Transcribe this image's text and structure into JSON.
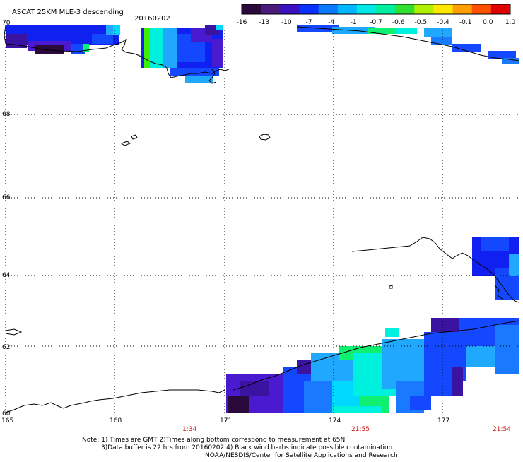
{
  "header": {
    "title": "ASCAT 25KM MLE-3 descending",
    "date": "20160202"
  },
  "colorbar": {
    "labels": [
      "-16",
      "-13",
      "-10",
      "-7",
      "-4",
      "-1",
      "-0.7",
      "-0.6",
      "-0.5",
      "-0.4",
      "-0.1",
      "0.0",
      "1.0"
    ],
    "colors": [
      "#2a0a3a",
      "#4a1a7a",
      "#3a10c0",
      "#0a30ff",
      "#0a78ff",
      "#00b8ff",
      "#00e8e8",
      "#00f0a0",
      "#30e030",
      "#b0f000",
      "#ffe800",
      "#ffa000",
      "#ff5000",
      "#e00000"
    ]
  },
  "map": {
    "lat_labels": [
      "70",
      "68",
      "66",
      "64",
      "62",
      "60"
    ],
    "lon_labels": [
      "165",
      "168",
      "171",
      "174",
      "177"
    ],
    "time_labels": [
      "1:34",
      "21:55",
      "21:54"
    ],
    "time_color": "#d01010",
    "swath_colors": {
      "deep": "#2a0a3a",
      "purple": "#3a14a0",
      "violet": "#4a1ad0",
      "blue": "#1020f0",
      "blue2": "#1448ff",
      "blue3": "#1a7aff",
      "sky": "#20a8ff",
      "cyan": "#00d8ff",
      "aqua": "#00f0e0",
      "green": "#10f070",
      "lime": "#40f000"
    }
  },
  "notes": {
    "line1": "Note: 1) Times are GMT 2)Times along bottom correspond to measurement at 65N",
    "line2": "3)Data buffer is 22 hrs from 20160202 4) Black wind barbs indicate possible contamination",
    "line3": "NOAA/NESDIS/Center for Satellite Applications and Research"
  }
}
